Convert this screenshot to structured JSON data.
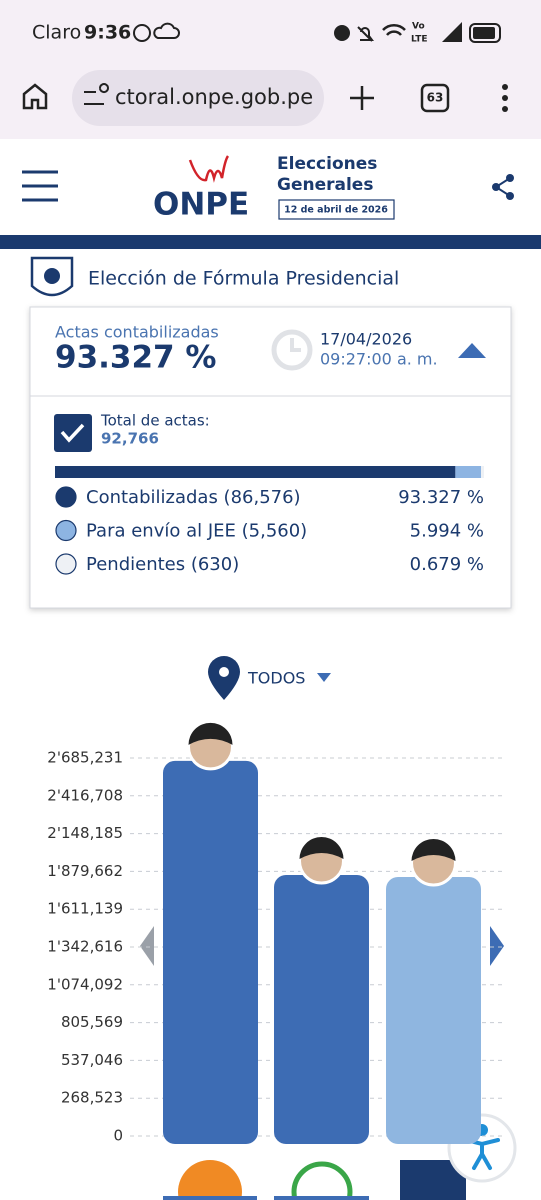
{
  "status_bar": {
    "carrier": "Claro",
    "time": "9:36",
    "network_top": "Vo",
    "network_bottom": "LTE"
  },
  "browser": {
    "url": "ctoral.onpe.gob.pe",
    "tabs": 63
  },
  "header": {
    "logo": "ONPE",
    "title_line1": "Elecciones",
    "title_line2": "Generales",
    "date": "12 de abril de 2026"
  },
  "section_title": "Elección de Fórmula Presidencial",
  "summary": {
    "label": "Actas contabilizadas",
    "percent": 93.327,
    "percent_label": "93.327 %",
    "date": "17/04/2026",
    "time": "09:27:00 a. m.",
    "total_label": "Total de actas:",
    "total": "92,766",
    "items": [
      {
        "name": "Contabilizadas (86,576)",
        "percent": 93.327,
        "percent_label": "93.327 %",
        "color": "#1b3a6e"
      },
      {
        "name": "Para envío al JEE (5,560)",
        "percent": 5.994,
        "percent_label": "5.994 %",
        "color": "#8db4e2"
      },
      {
        "name": "Pendientes (630)",
        "percent": 0.679,
        "percent_label": "0.679 %",
        "color": "#eef1f5"
      }
    ]
  },
  "filter": "TODOS",
  "chart_data": {
    "type": "bar",
    "categories": [
      null,
      null,
      null
    ],
    "values": [
      2665000,
      1854000,
      1840000
    ],
    "colors": [
      "#3d6cb4",
      "#3d6cb4",
      "#8fb6e0"
    ],
    "ylim": [
      0,
      2685231
    ],
    "yticks": [
      0,
      {
        "value": 268523,
        "label": "268,523"
      },
      {
        "value": 537046,
        "label": "537,046"
      },
      {
        "value": 805569,
        "label": "805,569"
      },
      {
        "value": 1074092,
        "label": "1'074,092"
      },
      {
        "value": 1342616,
        "label": "1'342,616"
      },
      {
        "value": 1611139,
        "label": "1'611,139"
      },
      {
        "value": 1879662,
        "label": "1'879,662"
      },
      {
        "value": 2148185,
        "label": "2'148,185"
      },
      {
        "value": 2416708,
        "label": "2'416,708"
      },
      {
        "value": 2685231,
        "label": "2'685,231"
      }
    ],
    "grid": true
  }
}
